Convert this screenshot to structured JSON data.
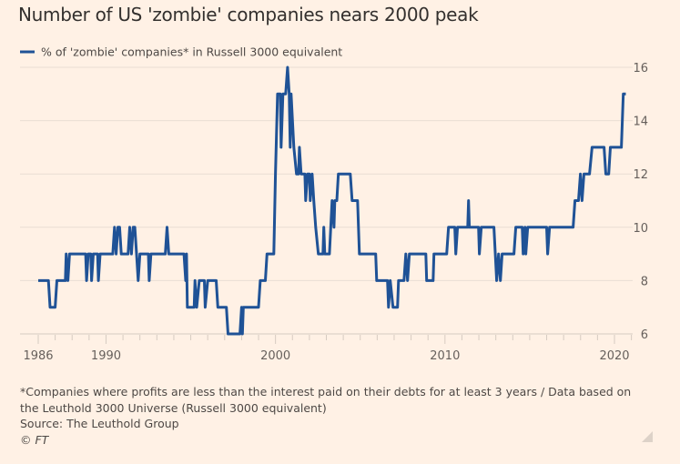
{
  "title": "Number of US 'zombie' companies nears 2000 peak",
  "footnote": {
    "note": "*Companies where profits are less than the interest paid on their debts for at least 3 years / Data based on the Leuthold 3000 Universe (Russell 3000 equivalent)",
    "source": "Source: The Leuthold Group",
    "copyright": "© FT"
  },
  "chart_data": {
    "type": "line",
    "title": "Number of US 'zombie' companies nears 2000 peak",
    "xlabel": "",
    "ylabel": "",
    "xlim": [
      1986,
      2020.7
    ],
    "ylim": [
      6,
      16
    ],
    "x_ticks": [
      "1986",
      "1990",
      "2000",
      "2010",
      "2020"
    ],
    "y_ticks": [
      "6",
      "8",
      "10",
      "12",
      "14",
      "16"
    ],
    "y_axis_side": "right",
    "grid": "horizontal",
    "legend_placement": "top-left",
    "line_color": "#1f5296",
    "series": [
      {
        "name": "% of 'zombie' companies* in Russell 3000 equivalent",
        "points": [
          [
            1986.0,
            8
          ],
          [
            1986.6,
            8
          ],
          [
            1986.7,
            7
          ],
          [
            1987.0,
            7
          ],
          [
            1987.1,
            8
          ],
          [
            1987.6,
            8
          ],
          [
            1987.65,
            9
          ],
          [
            1987.75,
            8
          ],
          [
            1987.85,
            9
          ],
          [
            1988.8,
            9
          ],
          [
            1988.85,
            8
          ],
          [
            1988.95,
            9
          ],
          [
            1989.1,
            9
          ],
          [
            1989.15,
            8
          ],
          [
            1989.25,
            9
          ],
          [
            1989.5,
            9
          ],
          [
            1989.55,
            8
          ],
          [
            1989.65,
            9
          ],
          [
            1990.4,
            9
          ],
          [
            1990.5,
            10
          ],
          [
            1990.6,
            9
          ],
          [
            1990.7,
            10
          ],
          [
            1990.8,
            10
          ],
          [
            1990.9,
            9
          ],
          [
            1991.3,
            9
          ],
          [
            1991.4,
            10
          ],
          [
            1991.5,
            9
          ],
          [
            1991.6,
            10
          ],
          [
            1991.7,
            10
          ],
          [
            1991.8,
            9
          ],
          [
            1991.9,
            8
          ],
          [
            1992.0,
            9
          ],
          [
            1992.5,
            9
          ],
          [
            1992.55,
            8
          ],
          [
            1992.65,
            9
          ],
          [
            1993.5,
            9
          ],
          [
            1993.6,
            10
          ],
          [
            1993.7,
            9
          ],
          [
            1994.6,
            9
          ],
          [
            1994.7,
            8
          ],
          [
            1994.75,
            9
          ],
          [
            1994.8,
            7
          ],
          [
            1995.2,
            7
          ],
          [
            1995.25,
            8
          ],
          [
            1995.35,
            7
          ],
          [
            1995.5,
            8
          ],
          [
            1995.8,
            8
          ],
          [
            1995.85,
            7
          ],
          [
            1996.0,
            8
          ],
          [
            1996.5,
            8
          ],
          [
            1996.6,
            7
          ],
          [
            1997.1,
            7
          ],
          [
            1997.2,
            6
          ],
          [
            1997.9,
            6
          ],
          [
            1998.0,
            7
          ],
          [
            1998.05,
            6
          ],
          [
            1998.1,
            7
          ],
          [
            1999.0,
            7
          ],
          [
            1999.1,
            8
          ],
          [
            1999.4,
            8
          ],
          [
            1999.5,
            9
          ],
          [
            1999.9,
            9
          ],
          [
            2000.0,
            12
          ],
          [
            2000.12,
            15
          ],
          [
            2000.28,
            15
          ],
          [
            2000.33,
            13
          ],
          [
            2000.44,
            15
          ],
          [
            2000.6,
            15
          ],
          [
            2000.71,
            16
          ],
          [
            2000.81,
            15
          ],
          [
            2000.87,
            13
          ],
          [
            2000.92,
            15
          ],
          [
            2001.08,
            13
          ],
          [
            2001.24,
            12
          ],
          [
            2001.36,
            12
          ],
          [
            2001.41,
            13
          ],
          [
            2001.51,
            12
          ],
          [
            2001.73,
            12
          ],
          [
            2001.78,
            11
          ],
          [
            2001.89,
            12
          ],
          [
            2002.0,
            12
          ],
          [
            2002.05,
            11
          ],
          [
            2002.16,
            12
          ],
          [
            2002.26,
            11
          ],
          [
            2002.37,
            10
          ],
          [
            2002.53,
            9
          ],
          [
            2002.8,
            9
          ],
          [
            2002.85,
            10
          ],
          [
            2002.91,
            9
          ],
          [
            2003.18,
            9
          ],
          [
            2003.34,
            11
          ],
          [
            2003.45,
            10
          ],
          [
            2003.5,
            11
          ],
          [
            2003.62,
            11
          ],
          [
            2003.71,
            12
          ],
          [
            2004.41,
            12
          ],
          [
            2004.52,
            11
          ],
          [
            2004.84,
            11
          ],
          [
            2004.95,
            9
          ],
          [
            2005.91,
            9
          ],
          [
            2005.97,
            8
          ],
          [
            2006.61,
            8
          ],
          [
            2006.67,
            7
          ],
          [
            2006.77,
            8
          ],
          [
            2006.93,
            7
          ],
          [
            2007.2,
            7
          ],
          [
            2007.26,
            8
          ],
          [
            2007.58,
            8
          ],
          [
            2007.69,
            9
          ],
          [
            2007.79,
            8
          ],
          [
            2007.9,
            9
          ],
          [
            2008.87,
            9
          ],
          [
            2008.92,
            8
          ],
          [
            2009.3,
            8
          ],
          [
            2009.35,
            9
          ],
          [
            2010.1,
            9
          ],
          [
            2010.21,
            10
          ],
          [
            2010.58,
            10
          ],
          [
            2010.64,
            9
          ],
          [
            2010.74,
            10
          ],
          [
            2011.34,
            10
          ],
          [
            2011.39,
            11
          ],
          [
            2011.44,
            10
          ],
          [
            2011.98,
            10
          ],
          [
            2012.03,
            9
          ],
          [
            2012.14,
            10
          ],
          [
            2012.89,
            10
          ],
          [
            2013.05,
            8
          ],
          [
            2013.16,
            9
          ],
          [
            2013.27,
            8
          ],
          [
            2013.37,
            9
          ],
          [
            2014.07,
            9
          ],
          [
            2014.18,
            10
          ],
          [
            2014.56,
            10
          ],
          [
            2014.61,
            9
          ],
          [
            2014.72,
            10
          ],
          [
            2014.77,
            9
          ],
          [
            2014.88,
            10
          ],
          [
            2016.0,
            10
          ],
          [
            2016.06,
            9
          ],
          [
            2016.17,
            10
          ],
          [
            2017.56,
            10
          ],
          [
            2017.67,
            11
          ],
          [
            2017.88,
            11
          ],
          [
            2017.99,
            12
          ],
          [
            2018.09,
            11
          ],
          [
            2018.2,
            12
          ],
          [
            2018.53,
            12
          ],
          [
            2018.68,
            13
          ],
          [
            2019.39,
            13
          ],
          [
            2019.49,
            12
          ],
          [
            2019.66,
            12
          ],
          [
            2019.76,
            13
          ],
          [
            2020.41,
            13
          ],
          [
            2020.52,
            15
          ],
          [
            2020.67,
            15
          ]
        ]
      }
    ]
  }
}
